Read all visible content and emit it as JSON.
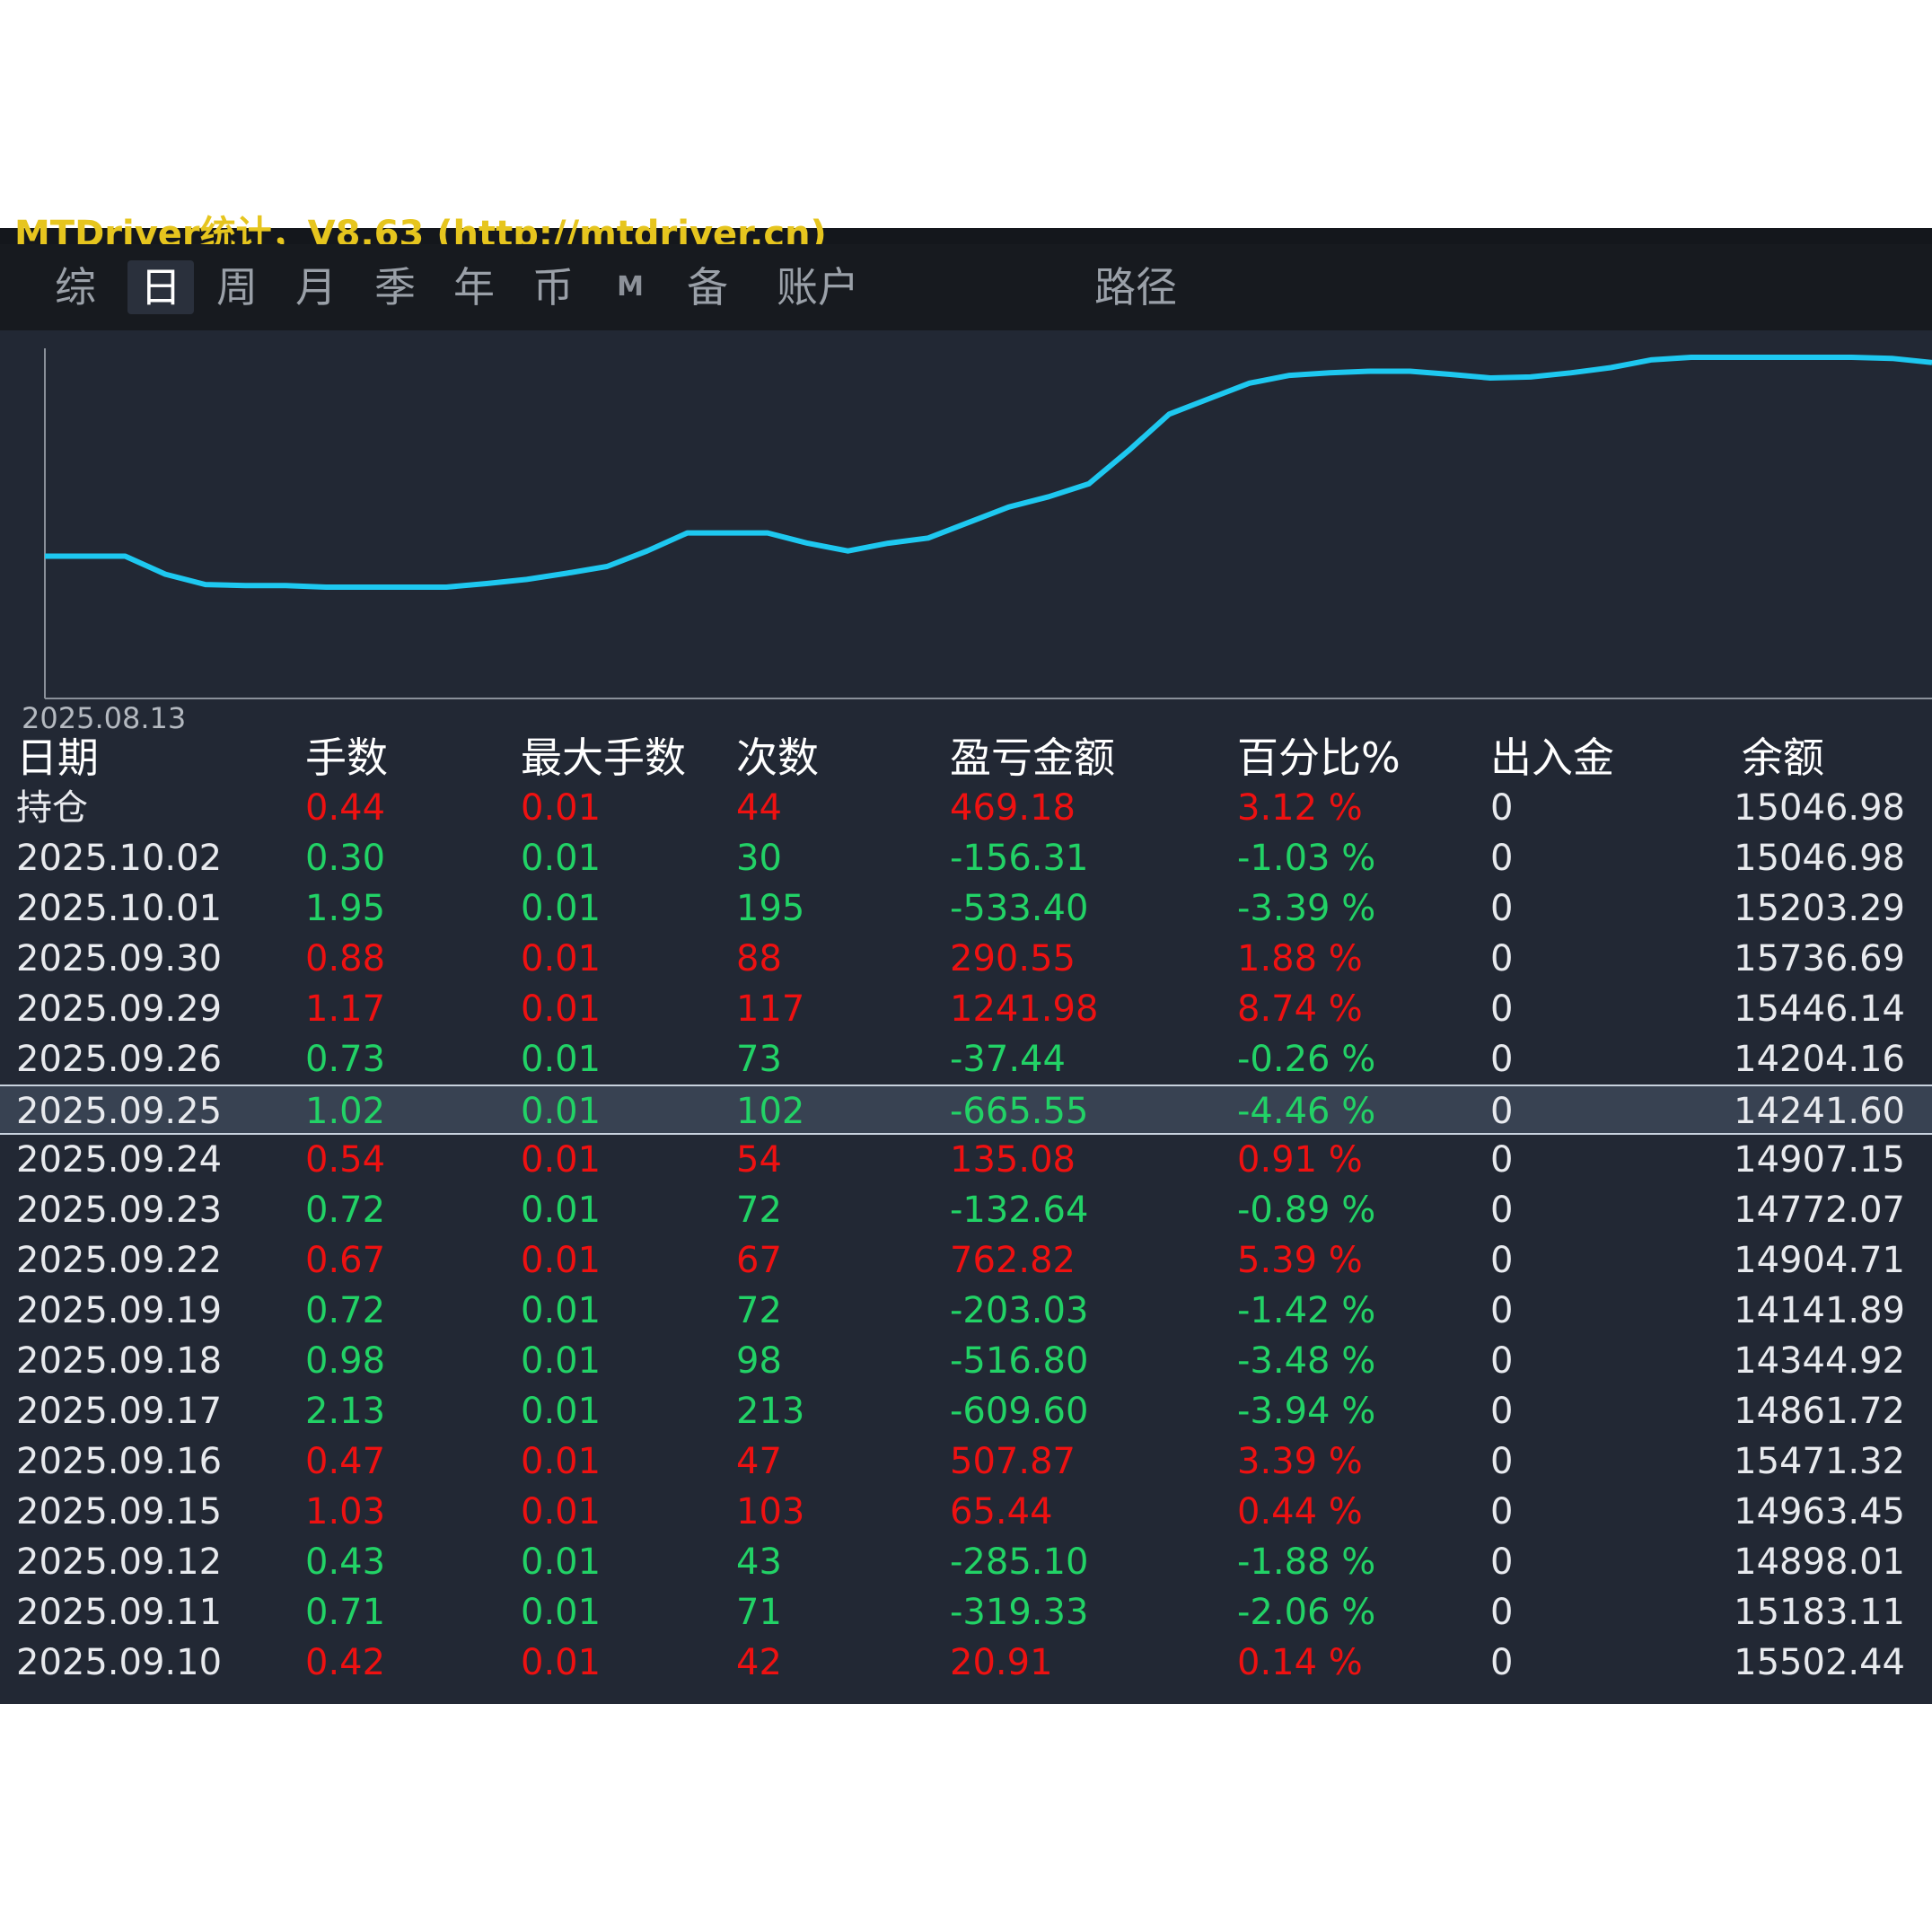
{
  "window": {
    "title": "MTDriver统计，V8.63 (http://mtdriver.cn)"
  },
  "tabs": [
    {
      "label": "综",
      "active": false
    },
    {
      "label": "日",
      "active": true
    },
    {
      "label": "周",
      "active": false
    },
    {
      "label": "月",
      "active": false
    },
    {
      "label": "季",
      "active": false
    },
    {
      "label": "年",
      "active": false
    },
    {
      "label": "币",
      "active": false
    },
    {
      "label": "M",
      "active": false
    },
    {
      "label": "备",
      "active": false
    },
    {
      "label": "账户",
      "active": false
    },
    {
      "label": "路径",
      "active": false
    }
  ],
  "chart_data": {
    "type": "line",
    "x_start_label": "2025.08.13",
    "line_color": "#1ec8f0",
    "grid": false,
    "series": [
      {
        "values": [
          14085,
          14085,
          14085,
          14050,
          14030,
          14028,
          14028,
          14025,
          14025,
          14025,
          14025,
          14032,
          14040,
          14052,
          14065,
          14095,
          14130,
          14130,
          14130,
          14110,
          14095,
          14110,
          14120,
          14150,
          14180,
          14200,
          14225,
          14290,
          14360,
          14390,
          14420,
          14435,
          14440,
          14443,
          14443,
          14437,
          14430,
          14432,
          14440,
          14450,
          14465,
          14470,
          14470,
          14470,
          14470,
          14470,
          14468,
          14460
        ]
      }
    ]
  },
  "table": {
    "columns": [
      "日期",
      "手数",
      "最大手数",
      "次数",
      "盈亏金额",
      "百分比%",
      "出入金",
      "余额"
    ],
    "rows": [
      {
        "date": "持仓",
        "lots": "0.44",
        "max_lots": "0.01",
        "count": "44",
        "pnl": "469.18",
        "pct": "3.12 %",
        "flow": "0",
        "balance": "15046.98",
        "sign": "pos"
      },
      {
        "date": "2025.10.02",
        "lots": "0.30",
        "max_lots": "0.01",
        "count": "30",
        "pnl": "-156.31",
        "pct": "-1.03 %",
        "flow": "0",
        "balance": "15046.98",
        "sign": "neg"
      },
      {
        "date": "2025.10.01",
        "lots": "1.95",
        "max_lots": "0.01",
        "count": "195",
        "pnl": "-533.40",
        "pct": "-3.39 %",
        "flow": "0",
        "balance": "15203.29",
        "sign": "neg"
      },
      {
        "date": "2025.09.30",
        "lots": "0.88",
        "max_lots": "0.01",
        "count": "88",
        "pnl": "290.55",
        "pct": "1.88 %",
        "flow": "0",
        "balance": "15736.69",
        "sign": "pos"
      },
      {
        "date": "2025.09.29",
        "lots": "1.17",
        "max_lots": "0.01",
        "count": "117",
        "pnl": "1241.98",
        "pct": "8.74 %",
        "flow": "0",
        "balance": "15446.14",
        "sign": "pos"
      },
      {
        "date": "2025.09.26",
        "lots": "0.73",
        "max_lots": "0.01",
        "count": "73",
        "pnl": "-37.44",
        "pct": "-0.26 %",
        "flow": "0",
        "balance": "14204.16",
        "sign": "neg"
      },
      {
        "date": "2025.09.25",
        "lots": "1.02",
        "max_lots": "0.01",
        "count": "102",
        "pnl": "-665.55",
        "pct": "-4.46 %",
        "flow": "0",
        "balance": "14241.60",
        "sign": "neg",
        "selected": true
      },
      {
        "date": "2025.09.24",
        "lots": "0.54",
        "max_lots": "0.01",
        "count": "54",
        "pnl": "135.08",
        "pct": "0.91 %",
        "flow": "0",
        "balance": "14907.15",
        "sign": "pos"
      },
      {
        "date": "2025.09.23",
        "lots": "0.72",
        "max_lots": "0.01",
        "count": "72",
        "pnl": "-132.64",
        "pct": "-0.89 %",
        "flow": "0",
        "balance": "14772.07",
        "sign": "neg"
      },
      {
        "date": "2025.09.22",
        "lots": "0.67",
        "max_lots": "0.01",
        "count": "67",
        "pnl": "762.82",
        "pct": "5.39 %",
        "flow": "0",
        "balance": "14904.71",
        "sign": "pos"
      },
      {
        "date": "2025.09.19",
        "lots": "0.72",
        "max_lots": "0.01",
        "count": "72",
        "pnl": "-203.03",
        "pct": "-1.42 %",
        "flow": "0",
        "balance": "14141.89",
        "sign": "neg"
      },
      {
        "date": "2025.09.18",
        "lots": "0.98",
        "max_lots": "0.01",
        "count": "98",
        "pnl": "-516.80",
        "pct": "-3.48 %",
        "flow": "0",
        "balance": "14344.92",
        "sign": "neg"
      },
      {
        "date": "2025.09.17",
        "lots": "2.13",
        "max_lots": "0.01",
        "count": "213",
        "pnl": "-609.60",
        "pct": "-3.94 %",
        "flow": "0",
        "balance": "14861.72",
        "sign": "neg"
      },
      {
        "date": "2025.09.16",
        "lots": "0.47",
        "max_lots": "0.01",
        "count": "47",
        "pnl": "507.87",
        "pct": "3.39 %",
        "flow": "0",
        "balance": "15471.32",
        "sign": "pos"
      },
      {
        "date": "2025.09.15",
        "lots": "1.03",
        "max_lots": "0.01",
        "count": "103",
        "pnl": "65.44",
        "pct": "0.44 %",
        "flow": "0",
        "balance": "14963.45",
        "sign": "pos"
      },
      {
        "date": "2025.09.12",
        "lots": "0.43",
        "max_lots": "0.01",
        "count": "43",
        "pnl": "-285.10",
        "pct": "-1.88 %",
        "flow": "0",
        "balance": "14898.01",
        "sign": "neg"
      },
      {
        "date": "2025.09.11",
        "lots": "0.71",
        "max_lots": "0.01",
        "count": "71",
        "pnl": "-319.33",
        "pct": "-2.06 %",
        "flow": "0",
        "balance": "15183.11",
        "sign": "neg"
      },
      {
        "date": "2025.09.10",
        "lots": "0.42",
        "max_lots": "0.01",
        "count": "42",
        "pnl": "20.91",
        "pct": "0.14 %",
        "flow": "0",
        "balance": "15502.44",
        "sign": "pos"
      }
    ]
  },
  "colors": {
    "background": "#222834",
    "positive": "#ee1111",
    "negative": "#22d266",
    "title": "#e6c51e"
  }
}
